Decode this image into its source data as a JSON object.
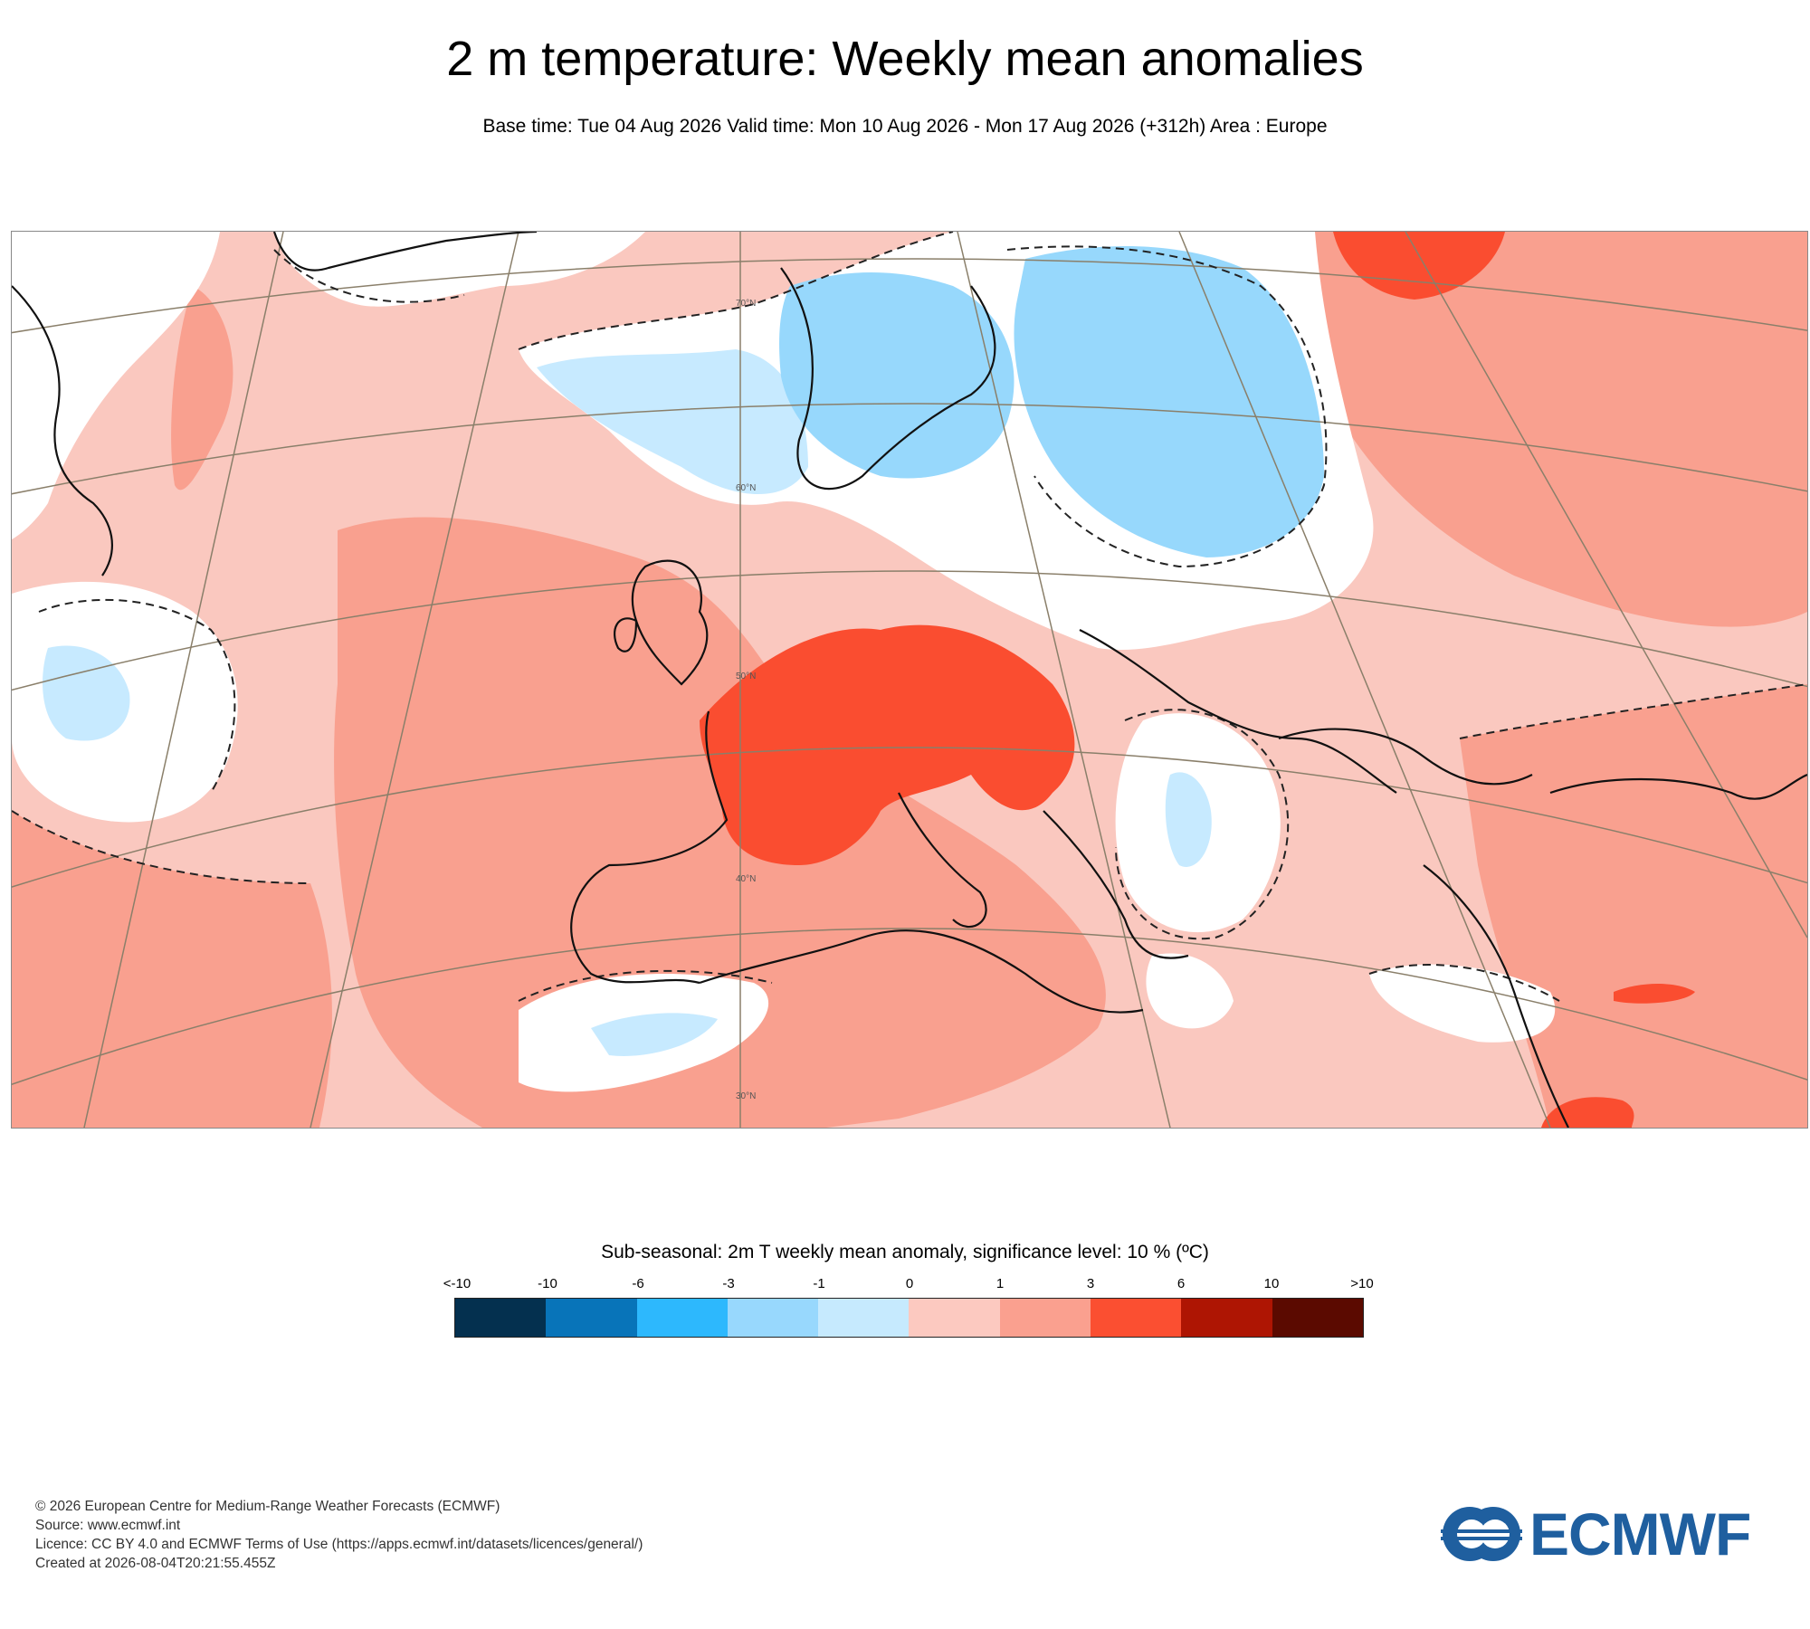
{
  "title": "2 m temperature: Weekly mean anomalies",
  "subtitle": "Base time: Tue 04 Aug 2026 Valid time: Mon 10 Aug 2026 - Mon 17 Aug 2026 (+312h) Area : Europe",
  "map": {
    "lat_labels": [
      "70°N",
      "60°N",
      "50°N",
      "40°N",
      "30°N"
    ],
    "colors": {
      "ocean_base": "#fac8bf",
      "warm": "#f9a08f",
      "hot": "#fa4d30",
      "cool": "#c7eaff",
      "cold": "#97d8fc",
      "neutral": "#ffffff"
    }
  },
  "legend": {
    "title": "Sub-seasonal: 2m T weekly mean anomaly, significance level: 10 % (ºC)",
    "ticks": [
      "<-10",
      "-10",
      "-6",
      "-3",
      "-1",
      "0",
      "1",
      "3",
      "6",
      "10",
      ">10"
    ],
    "colors": [
      "#04304f",
      "#0874b9",
      "#2db8fd",
      "#98d8fd",
      "#c6eafe",
      "#fcc9c0",
      "#faa08f",
      "#fb4f31",
      "#ae1503",
      "#5b0a00"
    ]
  },
  "footer": {
    "copyright": "© 2026 European Centre for Medium-Range Weather Forecasts (ECMWF)",
    "source": "Source: www.ecmwf.int",
    "licence": "Licence: CC BY 4.0 and ECMWF Terms of Use (https://apps.ecmwf.int/datasets/licences/general/)",
    "created": "Created at 2026-08-04T20:21:55.455Z"
  },
  "logo": {
    "text": "ECMWF",
    "color": "#1f5f9f"
  }
}
